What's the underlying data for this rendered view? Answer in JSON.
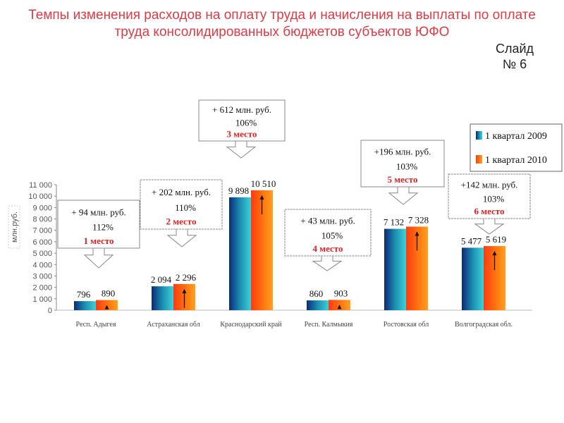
{
  "title": "Темпы изменения расходов на оплату труда и начисления на выплаты по оплате труда консолидированных бюджетов субъектов ЮФО",
  "slide_label": "Слайд",
  "slide_number": "№ 6",
  "chart_data": {
    "type": "bar",
    "title": "Темпы изменения расходов на оплату труда и начисления на выплаты по оплате труда консолидированных бюджетов субъектов ЮФО",
    "ylabel": "млн.руб.",
    "xlabel": "",
    "ylim": [
      0,
      11000
    ],
    "yticks": [
      "0",
      "1 000",
      "2 000",
      "3 000",
      "4 000",
      "5 000",
      "6 000",
      "7 000",
      "8 000",
      "9 000",
      "10 000",
      "11 000"
    ],
    "ytick_values": [
      0,
      1000,
      2000,
      3000,
      4000,
      5000,
      6000,
      7000,
      8000,
      9000,
      10000,
      11000
    ],
    "categories": [
      "Респ. Адыгея",
      "Астраханская обл",
      "Краснодарский край",
      "Респ. Калмыкия",
      "Ростовская обл",
      "Волгоградская обл."
    ],
    "series": [
      {
        "name": "1 квартал 2009",
        "values": [
          796,
          2094,
          9898,
          860,
          7132,
          5477
        ],
        "labels": [
          "796",
          "2 094",
          "9 898",
          "860",
          "7 132",
          "5 477"
        ],
        "color": "#1a9ab8"
      },
      {
        "name": "1 квартал 2010",
        "values": [
          890,
          2296,
          10510,
          903,
          7328,
          5619
        ],
        "labels": [
          "890",
          "2 296",
          "10 510",
          "903",
          "7 328",
          "5 619"
        ],
        "color": "#ff6a10"
      }
    ],
    "legend_position": "top-right",
    "annotations": [
      {
        "delta": "+ 94 млн. руб.",
        "pct": "112%",
        "rank": "1 место"
      },
      {
        "delta": "+ 202 млн. руб.",
        "pct": "110%",
        "rank": "2 место"
      },
      {
        "delta": "+ 612 млн. руб.",
        "pct": "106%",
        "rank": "3 место"
      },
      {
        "delta": "+ 43 млн. руб.",
        "pct": "105%",
        "rank": "4 место"
      },
      {
        "delta": "+196 млн. руб.",
        "pct": "103%",
        "rank": "5 место"
      },
      {
        "delta": "+142 млн. руб.",
        "pct": "103%",
        "rank": "6 место"
      }
    ]
  }
}
